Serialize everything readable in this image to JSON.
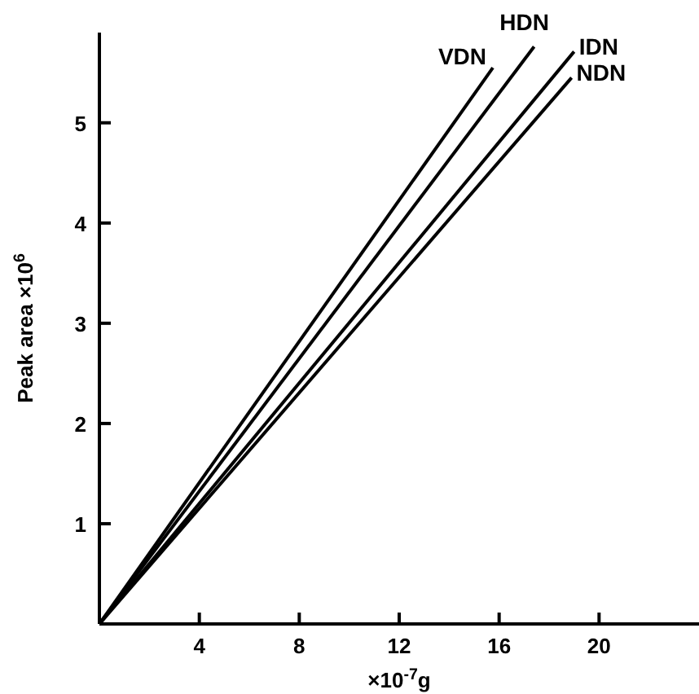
{
  "chart_data": {
    "type": "line",
    "xlabel": "×10$^{-7}$g",
    "ylabel": "Peak area  ×10$^{6}$",
    "xlim": [
      0,
      24
    ],
    "ylim": [
      0,
      5.9
    ],
    "xticks": [
      4,
      8,
      12,
      16,
      20
    ],
    "yticks": [
      1,
      2,
      3,
      4,
      5
    ],
    "grid": false,
    "marker": "none",
    "line_style": "solid",
    "series": [
      {
        "name": "VDN",
        "color": "#000000",
        "x": [
          0,
          15.75
        ],
        "values": [
          0,
          5.55
        ]
      },
      {
        "name": "HDN",
        "color": "#000000",
        "x": [
          0,
          17.4
        ],
        "values": [
          0,
          5.76
        ]
      },
      {
        "name": "IDN",
        "color": "#000000",
        "x": [
          0,
          19.0
        ],
        "values": [
          0,
          5.71
        ]
      },
      {
        "name": "NDN",
        "color": "#000000",
        "x": [
          0,
          18.9
        ],
        "values": [
          0,
          5.45
        ]
      }
    ]
  }
}
